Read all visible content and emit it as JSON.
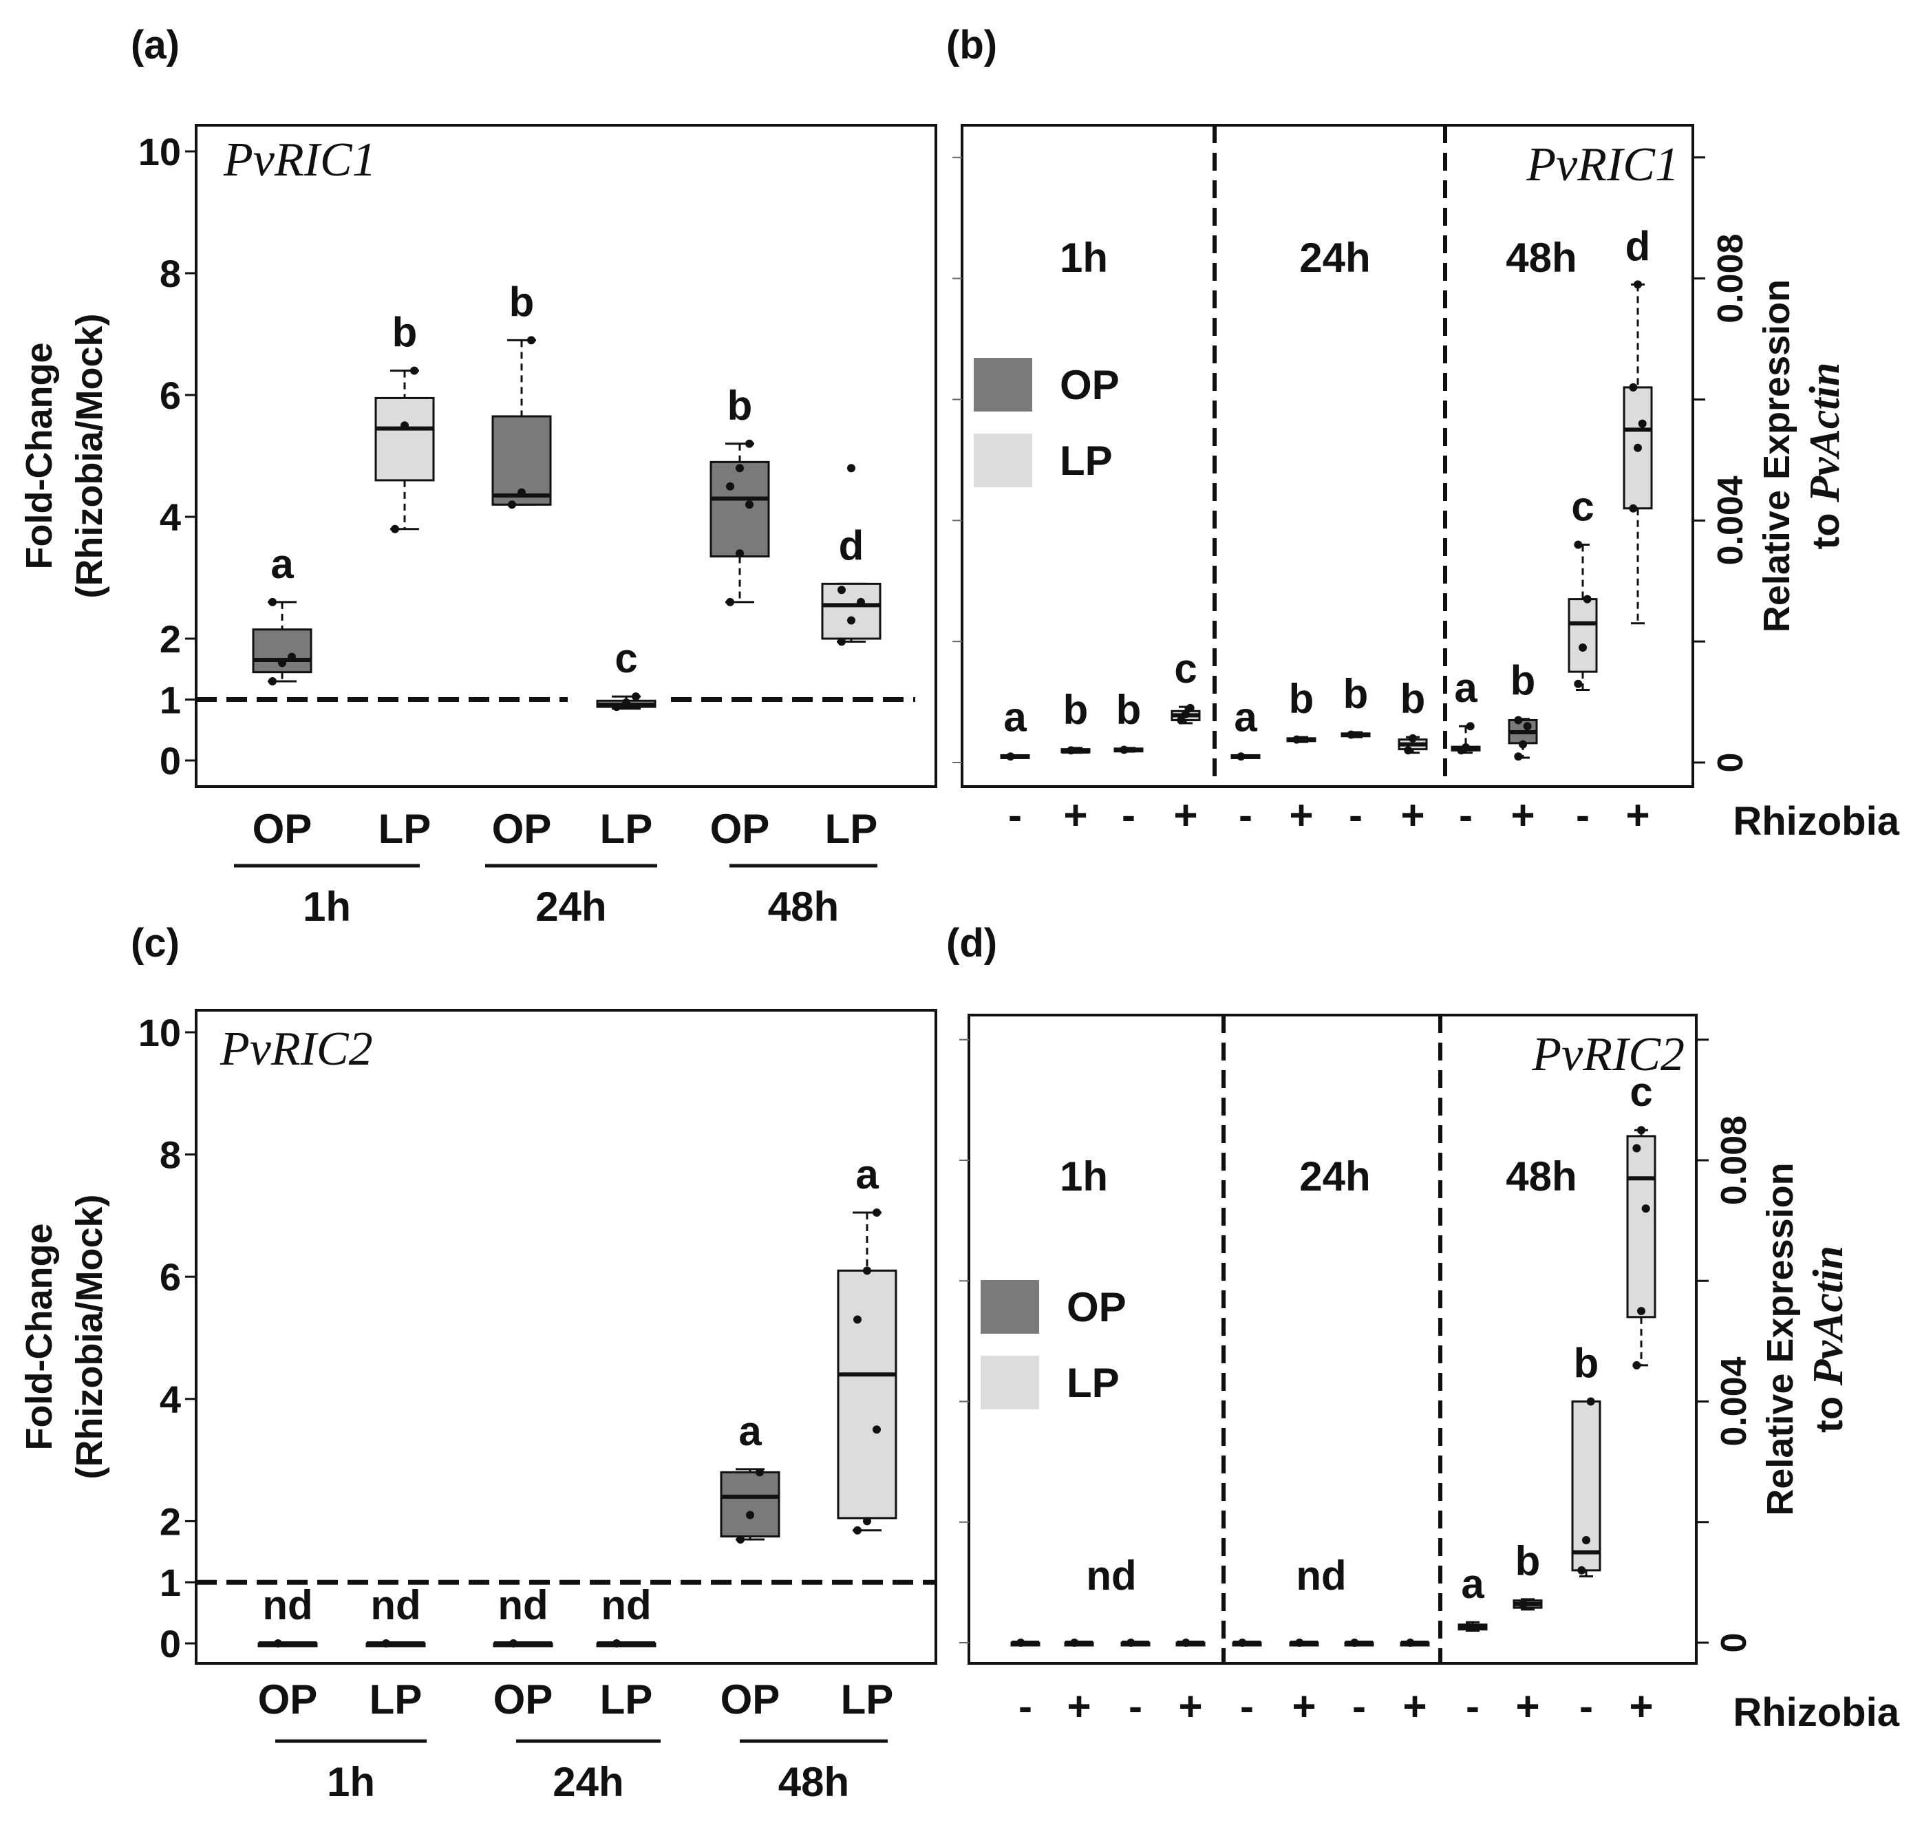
{
  "figure": {
    "colors": {
      "OP": "#7a7a7a",
      "LP": "#dcdcdc",
      "stroke": "#111111"
    }
  },
  "chart_data": [
    {
      "panel": "(a)",
      "type": "box",
      "gene_label": "PvRIC1",
      "ylabel_line1": "Fold-Change",
      "ylabel_line2": "(Rhizobia/Mock)",
      "ylim": [
        0,
        10
      ],
      "yticks": [
        "0",
        "1",
        "2",
        "4",
        "6",
        "8",
        "10"
      ],
      "reference_line": 1,
      "categories": [
        "OP",
        "LP",
        "OP",
        "LP",
        "OP",
        "LP"
      ],
      "group_labels": [
        "1h",
        "24h",
        "48h"
      ],
      "boxes": [
        {
          "group": "OP",
          "letter": "a",
          "min": 1.3,
          "q1": 1.45,
          "median": 1.65,
          "q3": 2.15,
          "max": 2.6,
          "points": [
            1.3,
            1.6,
            1.7,
            2.6
          ]
        },
        {
          "group": "LP",
          "letter": "b",
          "min": 3.8,
          "q1": 4.6,
          "median": 5.45,
          "q3": 5.95,
          "max": 6.4,
          "points": [
            3.8,
            5.5,
            6.4
          ]
        },
        {
          "group": "OP",
          "letter": "b",
          "min": 4.2,
          "q1": 4.2,
          "median": 4.35,
          "q3": 5.65,
          "max": 6.9,
          "points": [
            4.2,
            4.4,
            6.9
          ]
        },
        {
          "group": "LP",
          "letter": "c",
          "min": 0.85,
          "q1": 0.88,
          "median": 0.92,
          "q3": 0.98,
          "max": 1.05,
          "points": [
            0.88,
            0.95,
            1.05
          ]
        },
        {
          "group": "OP",
          "letter": "b",
          "min": 2.6,
          "q1": 3.35,
          "median": 4.3,
          "q3": 4.9,
          "max": 5.2,
          "points": [
            2.6,
            3.4,
            4.2,
            4.5,
            4.8,
            5.2
          ]
        },
        {
          "group": "LP",
          "letter": "d",
          "min": 1.95,
          "q1": 2.0,
          "median": 2.55,
          "q3": 2.9,
          "max": 2.9,
          "points": [
            1.95,
            2.3,
            2.6,
            2.8,
            4.8
          ]
        }
      ]
    },
    {
      "panel": "(b)",
      "type": "box",
      "gene_label": "PvRIC1",
      "ylabel_line1": "Relative Expression",
      "ylabel_line2": "to",
      "ylabel_ital": "PvActin",
      "ylim": [
        0,
        0.0101
      ],
      "yticks": [
        "0",
        "0.004",
        "0.008"
      ],
      "time_labels": [
        "1h",
        "24h",
        "48h"
      ],
      "legend": [
        "OP",
        "LP"
      ],
      "xlabel": "Rhizobia",
      "rhizobia": [
        "-",
        "+",
        "-",
        "+",
        "-",
        "+",
        "-",
        "+",
        "-",
        "+",
        "-",
        "+"
      ],
      "boxes": [
        {
          "group": "OP",
          "letter": "a",
          "min": 8e-05,
          "q1": 8e-05,
          "median": 0.0001,
          "q3": 0.00012,
          "max": 0.00012,
          "points": [
            0.0001
          ]
        },
        {
          "group": "OP",
          "letter": "b",
          "min": 0.00016,
          "q1": 0.00017,
          "median": 0.00018,
          "q3": 0.00022,
          "max": 0.00024,
          "points": [
            0.0002
          ]
        },
        {
          "group": "LP",
          "letter": "b",
          "min": 0.00018,
          "q1": 0.0002,
          "median": 0.00021,
          "q3": 0.00023,
          "max": 0.00024,
          "points": [
            0.00021
          ]
        },
        {
          "group": "LP",
          "letter": "c",
          "min": 0.00065,
          "q1": 0.0007,
          "median": 0.00078,
          "q3": 0.00085,
          "max": 0.00092,
          "points": [
            0.0007,
            0.0008,
            0.0009
          ]
        },
        {
          "group": "OP",
          "letter": "a",
          "min": 8e-05,
          "q1": 8e-05,
          "median": 0.0001,
          "q3": 0.00012,
          "max": 0.00012,
          "points": [
            0.0001
          ]
        },
        {
          "group": "OP",
          "letter": "b",
          "min": 0.00034,
          "q1": 0.00036,
          "median": 0.00038,
          "q3": 0.0004,
          "max": 0.00042,
          "points": [
            0.00038
          ]
        },
        {
          "group": "LP",
          "letter": "b",
          "min": 0.00042,
          "q1": 0.00044,
          "median": 0.00046,
          "q3": 0.00048,
          "max": 0.0005,
          "points": [
            0.00046
          ]
        },
        {
          "group": "LP",
          "letter": "b",
          "min": 0.00016,
          "q1": 0.00022,
          "median": 0.0003,
          "q3": 0.00038,
          "max": 0.00042,
          "points": [
            0.0002,
            0.0004
          ]
        },
        {
          "group": "OP",
          "letter": "a",
          "min": 0.00016,
          "q1": 0.0002,
          "median": 0.00023,
          "q3": 0.00026,
          "max": 0.0006,
          "points": [
            0.0002,
            0.00025,
            0.0006
          ]
        },
        {
          "group": "OP",
          "letter": "b",
          "min": 8e-05,
          "q1": 0.00032,
          "median": 0.0005,
          "q3": 0.0007,
          "max": 0.00072,
          "points": [
            0.0001,
            0.0003,
            0.0006,
            0.0007
          ]
        },
        {
          "group": "LP",
          "letter": "c",
          "min": 0.0012,
          "q1": 0.0015,
          "median": 0.0023,
          "q3": 0.0027,
          "max": 0.0036,
          "points": [
            0.0013,
            0.0019,
            0.0027,
            0.0036
          ]
        },
        {
          "group": "LP",
          "letter": "d",
          "min": 0.0023,
          "q1": 0.0042,
          "median": 0.0055,
          "q3": 0.0062,
          "max": 0.0079,
          "points": [
            0.0042,
            0.0052,
            0.0056,
            0.0062,
            0.0079
          ]
        }
      ]
    },
    {
      "panel": "(c)",
      "type": "box",
      "gene_label": "PvRIC2",
      "ylabel_line1": "Fold-Change",
      "ylabel_line2": "(Rhizobia/Mock)",
      "ylim": [
        0,
        10
      ],
      "yticks": [
        "0",
        "1",
        "2",
        "4",
        "6",
        "8",
        "10"
      ],
      "reference_line": 1,
      "categories": [
        "OP",
        "LP",
        "OP",
        "LP",
        "OP",
        "LP"
      ],
      "group_labels": [
        "1h",
        "24h",
        "48h"
      ],
      "boxes": [
        {
          "group": "OP",
          "letter": "nd",
          "min": 0,
          "q1": 0,
          "median": 0,
          "q3": 0,
          "max": 0,
          "points": [
            0
          ]
        },
        {
          "group": "LP",
          "letter": "nd",
          "min": 0,
          "q1": 0,
          "median": 0,
          "q3": 0,
          "max": 0,
          "points": [
            0
          ]
        },
        {
          "group": "OP",
          "letter": "nd",
          "min": 0,
          "q1": 0,
          "median": 0,
          "q3": 0,
          "max": 0,
          "points": [
            0
          ]
        },
        {
          "group": "LP",
          "letter": "nd",
          "min": 0,
          "q1": 0,
          "median": 0,
          "q3": 0,
          "max": 0,
          "points": [
            0
          ]
        },
        {
          "group": "OP",
          "letter": "a",
          "min": 1.7,
          "q1": 1.75,
          "median": 2.4,
          "q3": 2.8,
          "max": 2.85,
          "points": [
            1.7,
            2.1,
            2.8
          ]
        },
        {
          "group": "LP",
          "letter": "a",
          "min": 1.85,
          "q1": 2.05,
          "median": 4.4,
          "q3": 6.1,
          "max": 7.05,
          "points": [
            1.85,
            2.0,
            3.5,
            5.3,
            6.1,
            7.05
          ]
        }
      ]
    },
    {
      "panel": "(d)",
      "type": "box",
      "gene_label": "PvRIC2",
      "ylabel_line1": "Relative Expression",
      "ylabel_line2": "to",
      "ylabel_ital": "PvActin",
      "ylim": [
        0,
        0.0101
      ],
      "yticks": [
        "0",
        "0.004",
        "0.008"
      ],
      "time_labels": [
        "1h",
        "24h",
        "48h"
      ],
      "legend": [
        "OP",
        "LP"
      ],
      "xlabel": "Rhizobia",
      "rhizobia": [
        "-",
        "+",
        "-",
        "+",
        "-",
        "+",
        "-",
        "+",
        "-",
        "+",
        "-",
        "+"
      ],
      "nd_labels": [
        "nd",
        "nd"
      ],
      "boxes": [
        {
          "group": "OP",
          "letter": "",
          "min": 0,
          "q1": 0,
          "median": 0,
          "q3": 0,
          "max": 0,
          "points": [
            0
          ]
        },
        {
          "group": "OP",
          "letter": "",
          "min": 0,
          "q1": 0,
          "median": 0,
          "q3": 0,
          "max": 0,
          "points": [
            0
          ]
        },
        {
          "group": "LP",
          "letter": "",
          "min": 0,
          "q1": 0,
          "median": 0,
          "q3": 0,
          "max": 0,
          "points": [
            0
          ]
        },
        {
          "group": "LP",
          "letter": "",
          "min": 0,
          "q1": 0,
          "median": 0,
          "q3": 0,
          "max": 0,
          "points": [
            0
          ]
        },
        {
          "group": "OP",
          "letter": "",
          "min": 0,
          "q1": 0,
          "median": 0,
          "q3": 0,
          "max": 0,
          "points": [
            0
          ]
        },
        {
          "group": "OP",
          "letter": "",
          "min": 0,
          "q1": 0,
          "median": 0,
          "q3": 0,
          "max": 0,
          "points": [
            0
          ]
        },
        {
          "group": "LP",
          "letter": "",
          "min": 0,
          "q1": 0,
          "median": 0,
          "q3": 0,
          "max": 0,
          "points": [
            0
          ]
        },
        {
          "group": "LP",
          "letter": "",
          "min": 0,
          "q1": 0,
          "median": 0,
          "q3": 0,
          "max": 0,
          "points": [
            0
          ]
        },
        {
          "group": "OP",
          "letter": "a",
          "min": 0.0002,
          "q1": 0.00022,
          "median": 0.00026,
          "q3": 0.0003,
          "max": 0.00034,
          "points": [
            0.00026
          ]
        },
        {
          "group": "OP",
          "letter": "b",
          "min": 0.00055,
          "q1": 0.00058,
          "median": 0.00064,
          "q3": 0.0007,
          "max": 0.00072,
          "points": [
            0.00064
          ]
        },
        {
          "group": "LP",
          "letter": "b",
          "min": 0.0011,
          "q1": 0.0012,
          "median": 0.0015,
          "q3": 0.004,
          "max": 0.004,
          "points": [
            0.0012,
            0.0017,
            0.004
          ]
        },
        {
          "group": "LP",
          "letter": "c",
          "min": 0.0046,
          "q1": 0.0054,
          "median": 0.0077,
          "q3": 0.0084,
          "max": 0.0085,
          "points": [
            0.0046,
            0.0055,
            0.0072,
            0.0082,
            0.0085
          ]
        }
      ]
    }
  ]
}
